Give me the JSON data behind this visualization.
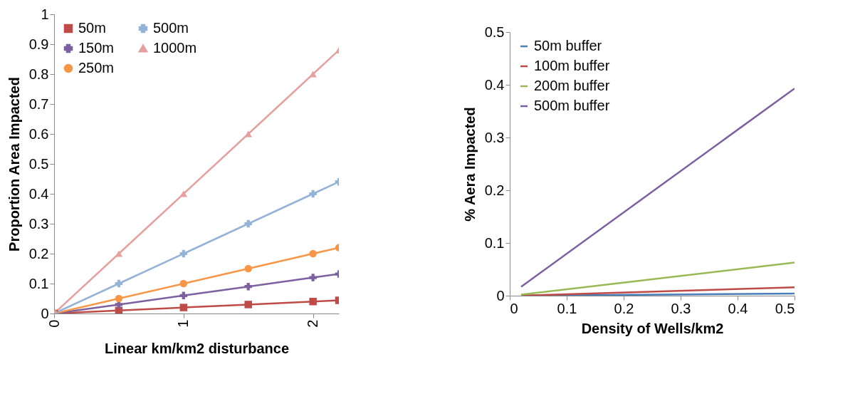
{
  "chart_data": [
    {
      "type": "line",
      "xlabel": "Linear km/km2 disturbance",
      "ylabel": "Proportion Area Impacted",
      "xlim": [
        0,
        2.2
      ],
      "xticks": [
        0,
        1,
        2
      ],
      "ylim": [
        0,
        1
      ],
      "yticks": [
        0,
        0.1,
        0.2,
        0.3,
        0.4,
        0.5,
        0.6,
        0.7,
        0.8,
        0.9,
        1
      ],
      "legend": "top left",
      "grid": false,
      "x": [
        0,
        0.5,
        1,
        1.5,
        2,
        2.2
      ],
      "series": [
        {
          "name": "50m",
          "color": "#be4b48",
          "marker": "square",
          "values": [
            0,
            0.01,
            0.02,
            0.03,
            0.04,
            0.044
          ]
        },
        {
          "name": "150m",
          "color": "#7d60a0",
          "marker": "cross",
          "values": [
            0,
            0.03,
            0.06,
            0.09,
            0.12,
            0.132
          ]
        },
        {
          "name": "250m",
          "color": "#f79646",
          "marker": "circle",
          "values": [
            0,
            0.05,
            0.1,
            0.15,
            0.2,
            0.22
          ]
        },
        {
          "name": "500m",
          "color": "#95b3d7",
          "marker": "cross",
          "values": [
            0,
            0.1,
            0.2,
            0.3,
            0.4,
            0.44
          ]
        },
        {
          "name": "1000m",
          "color": "#e6a0a0",
          "marker": "triangle",
          "values": [
            0,
            0.2,
            0.4,
            0.6,
            0.8,
            0.88
          ]
        }
      ]
    },
    {
      "type": "line",
      "xlabel": "Density of Wells/km2",
      "ylabel": "% Aera Impacted",
      "xlim": [
        0,
        0.5
      ],
      "xticks": [
        0,
        0.1,
        0.2,
        0.3,
        0.4,
        0.5
      ],
      "ylim": [
        0,
        0.5
      ],
      "yticks": [
        0,
        0.1,
        0.2,
        0.3,
        0.4,
        0.5
      ],
      "legend": "top left",
      "grid": false,
      "x": [
        0.02,
        0.5
      ],
      "series": [
        {
          "name": "50m buffer",
          "color": "#4a7ebb",
          "values": [
            0,
            0.004
          ]
        },
        {
          "name": "100m buffer",
          "color": "#be4b48",
          "values": [
            0,
            0.016
          ]
        },
        {
          "name": "200m buffer",
          "color": "#98b954",
          "values": [
            0.002,
            0.063
          ]
        },
        {
          "name": "500m buffer",
          "color": "#7d60a0",
          "values": [
            0.017,
            0.393
          ]
        }
      ]
    }
  ]
}
